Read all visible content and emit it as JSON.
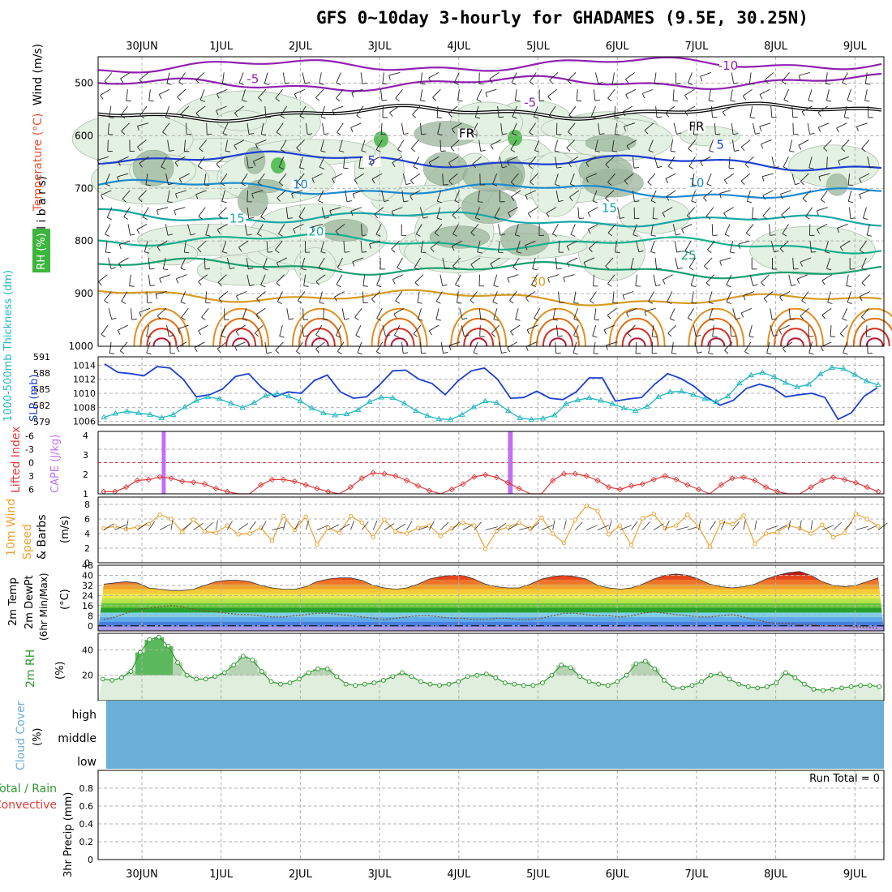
{
  "title": "GFS 0~10day 3-hourly for GHADAMES (9.5E, 30.25N)",
  "colors": {
    "rh_fill_light": "#e2f1e2",
    "rh_fill_mid": "#c8dcc8",
    "rh_fill_dark": "#9cb59c",
    "rh_fill_bright": "#5fbf5f",
    "slp": "#1c3fd1",
    "thickness": "#22b8c0",
    "lifted_index": "#e0393b",
    "cape": "#c070f0",
    "wind_speed": "#f0a030",
    "rh2m": "#2e9a2e",
    "cloud": "#6aafd6",
    "temperature_label": "#e8502f"
  },
  "chart_data": [
    {
      "panel": "upper-air",
      "type": "heatmap",
      "ylabel": [
        "(m i l l i b a r s)"
      ],
      "side_labels": {
        "rh": "RH (%)",
        "temperature": "Temperature (°C)",
        "wind": "Wind (m/s)"
      },
      "x_ticks": [
        "30JUN",
        "1JUL",
        "2JUL",
        "3JUL",
        "4JUL",
        "5JUL",
        "6JUL",
        "7JUL",
        "8JUL",
        "9JUL"
      ],
      "y_ticks": [
        500,
        600,
        700,
        800,
        900,
        1000
      ],
      "ylim": [
        1000,
        450
      ],
      "temperature_contours": [
        {
          "label": "-10",
          "level_mb": 470
        },
        {
          "label": "-5",
          "level_mb": 505
        },
        {
          "label": "FR",
          "level_mb": 560
        },
        {
          "label": "5",
          "level_mb": 640
        },
        {
          "label": "10",
          "level_mb": 695
        },
        {
          "label": "15",
          "level_mb": 750
        },
        {
          "label": "20",
          "level_mb": 795
        },
        {
          "label": "25",
          "level_mb": 845
        },
        {
          "label": "30",
          "level_mb": 900
        }
      ],
      "contour_labels": [
        {
          "text": "-10",
          "x_day": 7.4,
          "level_mb": 475,
          "color": "#9020b0"
        },
        {
          "text": "-5",
          "x_day": 1.4,
          "level_mb": 500,
          "color": "#9020b0"
        },
        {
          "text": "-5",
          "x_day": 4.9,
          "level_mb": 545,
          "color": "#9020b0"
        },
        {
          "text": "FR",
          "x_day": 4.1,
          "level_mb": 603,
          "color": "#000000"
        },
        {
          "text": "FR",
          "x_day": 7.0,
          "level_mb": 590,
          "color": "#000000"
        },
        {
          "text": "5",
          "x_day": 2.9,
          "level_mb": 655,
          "color": "#1c3fd1"
        },
        {
          "text": "5",
          "x_day": 7.3,
          "level_mb": 625,
          "color": "#1c3fd1"
        },
        {
          "text": "10",
          "x_day": 2.0,
          "level_mb": 700,
          "color": "#1a8ad0"
        },
        {
          "text": "10",
          "x_day": 7.0,
          "level_mb": 697,
          "color": "#1a8ad0"
        },
        {
          "text": "15",
          "x_day": 1.2,
          "level_mb": 765,
          "color": "#16a6a6"
        },
        {
          "text": "15",
          "x_day": 5.9,
          "level_mb": 745,
          "color": "#16a6a6"
        },
        {
          "text": "20",
          "x_day": 2.2,
          "level_mb": 790,
          "color": "#16b090"
        },
        {
          "text": "25",
          "x_day": 6.9,
          "level_mb": 835,
          "color": "#1aa070"
        },
        {
          "text": "30",
          "x_day": 5.0,
          "level_mb": 885,
          "color": "#d69c20"
        }
      ]
    },
    {
      "panel": "thickness-slp",
      "type": "line",
      "left_label": "1000-500mb Thickness (dm)",
      "right_label": "SLP (mb)",
      "thickness_ticks": [
        579,
        582,
        585,
        588,
        591
      ],
      "slp_ticks": [
        1006,
        1008,
        1010,
        1012,
        1014
      ],
      "slp_range": [
        1005.5,
        1015.2
      ],
      "thickness_range": [
        578.4,
        591.0
      ],
      "slp": [
        1014.2,
        1013.0,
        1012.8,
        1012.5,
        1013.8,
        1013.6,
        1012.0,
        1009.5,
        1009.8,
        1010.6,
        1012.4,
        1012.8,
        1010.8,
        1009.5,
        1010.2,
        1010.0,
        1011.8,
        1012.6,
        1010.2,
        1009.3,
        1009.5,
        1011.2,
        1013.2,
        1013.3,
        1012.0,
        1011.4,
        1009.8,
        1011.8,
        1013.2,
        1013.6,
        1012.0,
        1009.3,
        1009.4,
        1010.3,
        1009.3,
        1009.1,
        1010.2,
        1012.2,
        1012.2,
        1008.9,
        1009.2,
        1009.4,
        1011.3,
        1012.8,
        1012.1,
        1011.0,
        1009.4,
        1008.3,
        1009.0,
        1010.7,
        1011.3,
        1010.8,
        1009.5,
        1009.8,
        1010.0,
        1009.4,
        1006.3,
        1007.2,
        1009.6,
        1010.8
      ],
      "thickness": [
        579.8,
        580.5,
        580.9,
        580.6,
        580.3,
        579.7,
        580.3,
        581.7,
        582.9,
        583.6,
        583.2,
        582.4,
        581.6,
        582.5,
        583.8,
        584.2,
        583.7,
        582.8,
        581.5,
        580.6,
        580.2,
        580.4,
        581.2,
        582.7,
        583.5,
        583.4,
        582.4,
        581.0,
        580.1,
        579.5,
        579.4,
        580.3,
        581.7,
        582.8,
        582.5,
        581.0,
        579.7,
        579.4,
        579.6,
        580.2,
        582.3,
        583.0,
        583.4,
        582.9,
        582.3,
        581.5,
        581.0,
        581.8,
        583.6,
        584.5,
        584.6,
        584.0,
        583.2,
        582.7,
        583.7,
        586.1,
        587.6,
        588.1,
        587.3,
        586.2,
        585.4,
        585.9,
        587.8,
        589.0,
        588.8,
        587.7,
        586.5,
        585.8
      ]
    },
    {
      "panel": "lifted-index-cape",
      "type": "line",
      "left_label": "Lifted Index",
      "right_label": "CAPE (J/kg)",
      "li_ticks": [
        -6,
        -3,
        0,
        3,
        6
      ],
      "cape_ticks": [
        1,
        2,
        3,
        4
      ],
      "cape_bar_ranges": [
        [
          0.25,
          0.3
        ],
        [
          4.62,
          4.68
        ]
      ],
      "lifted_index_range": [
        7,
        -7
      ],
      "lifted_index": [
        6.5,
        6.5,
        5.5,
        4.0,
        3.8,
        3.2,
        3.5,
        4.2,
        4.4,
        4.8,
        5.8,
        6.5,
        7.0,
        7.0,
        5.0,
        3.8,
        3.8,
        4.2,
        5.0,
        5.8,
        6.5,
        7.0,
        5.5,
        3.5,
        2.3,
        2.5,
        3.0,
        4.0,
        5.2,
        6.3,
        7.0,
        6.0,
        4.8,
        3.2,
        2.7,
        3.3,
        4.5,
        5.8,
        7.0,
        7.0,
        4.0,
        2.5,
        2.5,
        3.0,
        4.0,
        5.5,
        6.0,
        5.2,
        4.8,
        3.8,
        3.0,
        3.8,
        5.0,
        6.0,
        7.0,
        5.0,
        3.5,
        3.3,
        4.0,
        5.5,
        6.5,
        7.0,
        7.0,
        5.5,
        4.0,
        3.3,
        3.8,
        4.5,
        5.5,
        6.5
      ]
    },
    {
      "panel": "wind-10m",
      "type": "line",
      "left_label": "10m Wind Speed & Barbs",
      "unit": "(m/s)",
      "y_ticks": [
        0,
        2,
        4,
        6,
        8
      ],
      "ylim": [
        0,
        9
      ],
      "speed": [
        4.7,
        5.0,
        4.6,
        4.9,
        5.3,
        6.6,
        6.0,
        4.2,
        5.9,
        4.3,
        4.1,
        5.1,
        3.9,
        4.0,
        4.8,
        3.0,
        6.4,
        4.5,
        6.3,
        2.5,
        4.8,
        4.1,
        6.4,
        5.5,
        3.5,
        5.9,
        4.3,
        4.0,
        4.8,
        5.1,
        3.7,
        4.7,
        5.5,
        5.1,
        1.9,
        4.4,
        4.9,
        5.5,
        4.6,
        6.2,
        4.0,
        2.7,
        5.9,
        7.8,
        7.1,
        3.9,
        5.1,
        2.4,
        6.1,
        6.7,
        4.7,
        5.1,
        6.6,
        4.9,
        2.2,
        5.6,
        5.3,
        6.5,
        2.6,
        4.0,
        4.2,
        5.1,
        4.7,
        4.0,
        5.2,
        3.5,
        4.1,
        6.7,
        6.0,
        5.0
      ]
    },
    {
      "panel": "temperature-2m",
      "type": "area",
      "left_label": [
        "2m Temp",
        "2m DewPt",
        "(6hr Min/Max)"
      ],
      "unit": "(°C)",
      "y_ticks": [
        0,
        8,
        16,
        24,
        32,
        40,
        48
      ],
      "ylim": [
        -4,
        48
      ],
      "band_colors": [
        "#ad9ae6",
        "#4a7de0",
        "#5ea9ea",
        "#7fd0e8",
        "#2aa02a",
        "#68c838",
        "#b9e34a",
        "#ede84e",
        "#f7c93a",
        "#f2a12a",
        "#ef742a",
        "#e6451e",
        "#c4181a",
        "#8b0d0d"
      ],
      "temp": [
        33,
        34,
        35,
        34,
        30,
        29,
        28,
        28,
        29,
        32,
        35,
        36,
        36,
        35,
        32,
        30,
        29,
        29,
        31,
        35,
        37,
        38,
        38,
        36,
        32,
        30,
        29,
        30,
        33,
        37,
        39,
        40,
        40,
        37,
        33,
        31,
        30,
        30,
        33,
        37,
        39,
        40,
        39,
        37,
        32,
        30,
        29,
        30,
        33,
        37,
        40,
        41,
        40,
        37,
        33,
        31,
        30,
        31,
        33,
        37,
        40,
        42,
        43,
        40,
        35,
        32,
        31,
        32,
        35,
        38
      ],
      "dewpoint": [
        5,
        7,
        10,
        13,
        14,
        15,
        16,
        15,
        13,
        12,
        11,
        10,
        9,
        9,
        8,
        7,
        7,
        8,
        9,
        10,
        10,
        9,
        8,
        7,
        6,
        5,
        6,
        7,
        8,
        8,
        7,
        6,
        6,
        5,
        5,
        6,
        6,
        5,
        5,
        6,
        8,
        10,
        10,
        9,
        8,
        8,
        7,
        8,
        10,
        11,
        10,
        9,
        8,
        7,
        7,
        8,
        9,
        7,
        5,
        3,
        2,
        2,
        1,
        1,
        0,
        0,
        0,
        -1,
        -1,
        -2
      ]
    },
    {
      "panel": "rh-2m",
      "type": "area",
      "left_label": "2m RH",
      "unit": "(%)",
      "y_ticks": [
        20,
        40
      ],
      "ylim": [
        0,
        53
      ],
      "rh": [
        17,
        16,
        18,
        23,
        38,
        48,
        50,
        43,
        30,
        20,
        17,
        17,
        19,
        22,
        28,
        35,
        32,
        23,
        15,
        13,
        14,
        17,
        22,
        25,
        25,
        19,
        13,
        12,
        13,
        14,
        16,
        19,
        22,
        19,
        15,
        13,
        12,
        13,
        15,
        19,
        20,
        21,
        18,
        14,
        13,
        12,
        12,
        14,
        20,
        28,
        26,
        19,
        15,
        13,
        12,
        15,
        20,
        29,
        31,
        25,
        16,
        10,
        10,
        12,
        15,
        20,
        21,
        17,
        13,
        11,
        10,
        11,
        14,
        22,
        18,
        13,
        9,
        8,
        9,
        10,
        11,
        12,
        12,
        11
      ]
    },
    {
      "panel": "cloud-cover",
      "type": "heatmap",
      "left_label": "Cloud Cover",
      "unit": "(%)",
      "levels": [
        "high",
        "middle",
        "low"
      ],
      "value_pct": 0,
      "fill_color": "#6aafd6"
    },
    {
      "panel": "precip-3hr",
      "type": "bar",
      "left_labels": [
        "Total / Rain",
        "Convective"
      ],
      "ylabel": "3hr Precip (mm)",
      "y_ticks": [
        "0",
        "0.2",
        "0.4",
        "0.6",
        "0.8"
      ],
      "ylim": [
        0,
        1
      ],
      "run_total": "Run Total = 0",
      "values": []
    }
  ]
}
